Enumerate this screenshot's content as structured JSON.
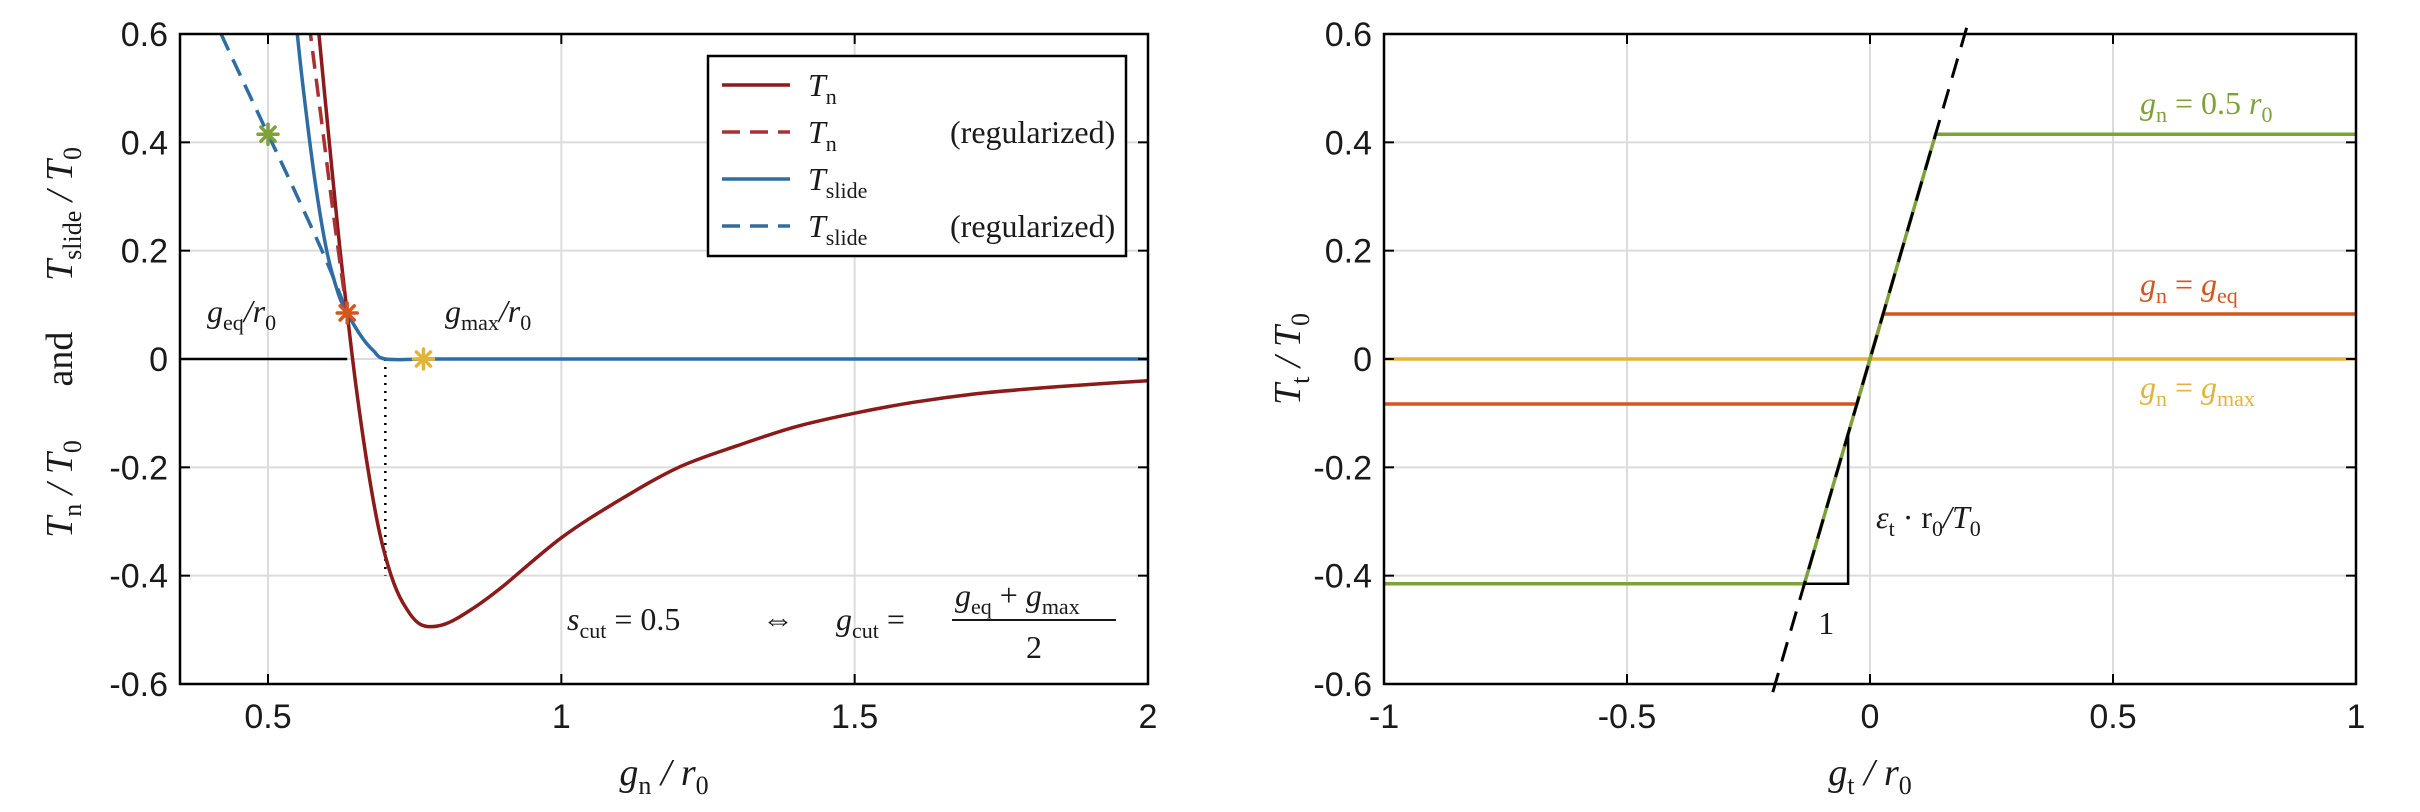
{
  "chart_data": [
    {
      "type": "line",
      "xlim": [
        0.35,
        2
      ],
      "ylim": [
        -0.6,
        0.6
      ],
      "xticks": [
        0.5,
        1,
        1.5,
        2
      ],
      "xtick_labels": [
        "0.5",
        "1",
        "1.5",
        "2"
      ],
      "yticks": [
        -0.6,
        -0.4,
        -0.2,
        0,
        0.2,
        0.4,
        0.6
      ],
      "ytick_labels": [
        "-0.6",
        "-0.4",
        "-0.2",
        "0",
        "0.2",
        "0.4",
        "0.6"
      ],
      "grid": true,
      "legend_position": "top-right",
      "xlabel": {
        "sym": "g",
        "sub": "n",
        "rest": " / r",
        "sub2": "0"
      },
      "ylabel": {
        "a": "T",
        "a_sub": "n",
        "b": " / T",
        "b_sub": "0",
        "and": "and",
        "c": "T",
        "c_sub": "slide",
        "d": " / T",
        "d_sub": "0"
      },
      "legend": [
        {
          "main": "T",
          "sub": "n",
          "suffix": "",
          "color": "#8b1a1a",
          "dashed": false
        },
        {
          "main": "T",
          "sub": "n",
          "suffix": "(regularized)",
          "color": "#a83232",
          "dashed": true
        },
        {
          "main": "T",
          "sub": "slide",
          "suffix": "",
          "color": "#2e6da4",
          "dashed": false
        },
        {
          "main": "T",
          "sub": "slide",
          "suffix": "(regularized)",
          "color": "#2e6da4",
          "dashed": true
        }
      ],
      "series": [
        {
          "name": "T_n",
          "color": "#8b1a1a",
          "dashed": false,
          "x": [
            0.585,
            0.6,
            0.62,
            0.635,
            0.65,
            0.67,
            0.69,
            0.71,
            0.73,
            0.76,
            0.8,
            0.85,
            0.9,
            1.0,
            1.1,
            1.2,
            1.3,
            1.4,
            1.5,
            1.6,
            1.7,
            1.8,
            1.9,
            2.0
          ],
          "y": [
            0.62,
            0.45,
            0.23,
            0.085,
            -0.05,
            -0.2,
            -0.32,
            -0.4,
            -0.45,
            -0.49,
            -0.49,
            -0.46,
            -0.42,
            -0.33,
            -0.26,
            -0.2,
            -0.16,
            -0.125,
            -0.1,
            -0.08,
            -0.065,
            -0.055,
            -0.047,
            -0.04
          ]
        },
        {
          "name": "T_n (regularized)",
          "color": "#a83232",
          "dashed": true,
          "x": [
            0.57,
            0.59,
            0.61,
            0.625,
            0.635
          ],
          "y": [
            0.62,
            0.45,
            0.28,
            0.16,
            0.085
          ]
        },
        {
          "name": "T_slide",
          "color": "#2e6da4",
          "dashed": false,
          "x": [
            0.548,
            0.56,
            0.58,
            0.6,
            0.62,
            0.635,
            0.66,
            0.68,
            0.7,
            0.765,
            1.0,
            1.5,
            2.0
          ],
          "y": [
            0.62,
            0.5,
            0.33,
            0.2,
            0.12,
            0.085,
            0.04,
            0.015,
            0.0,
            0.0,
            0.0,
            0.0,
            0.0
          ]
        },
        {
          "name": "T_slide (regularized)",
          "color": "#2e6da4",
          "dashed": true,
          "x": [
            0.42,
            0.45,
            0.5,
            0.55,
            0.6,
            0.635
          ],
          "y": [
            0.6,
            0.53,
            0.415,
            0.3,
            0.18,
            0.085
          ]
        }
      ],
      "zero_line": {
        "x": [
          0.35,
          0.635
        ],
        "y": [
          0,
          0
        ],
        "color": "#000000"
      },
      "cut_line": {
        "x": 0.7,
        "y": [
          0,
          -0.4
        ]
      },
      "markers": [
        {
          "name": "reg-point",
          "x": 0.5,
          "y": 0.415,
          "color": "#7ea23a"
        },
        {
          "name": "eq-point",
          "x": 0.635,
          "y": 0.085,
          "color": "#d4561f"
        },
        {
          "name": "max-point",
          "x": 0.765,
          "y": 0.0,
          "color": "#e3b43c"
        }
      ],
      "annotations": {
        "geq": {
          "sym": "g",
          "sub": "eq",
          "rest": "/r",
          "sub2": "0"
        },
        "gmax": {
          "sym": "g",
          "sub": "max",
          "rest": "/r",
          "sub2": "0"
        },
        "scut": {
          "sym": "s",
          "sub": "cut",
          "eq": " = 0.5",
          "iff": "⇔",
          "g": "g",
          "gsub": "cut",
          "eq2": " = ",
          "num_a": "g",
          "num_a_sub": "eq",
          "plus": " + ",
          "num_b": "g",
          "num_b_sub": "max",
          "den": "2"
        }
      }
    },
    {
      "type": "line",
      "xlim": [
        -1,
        1
      ],
      "ylim": [
        -0.6,
        0.6
      ],
      "xticks": [
        -1,
        -0.5,
        0,
        0.5,
        1
      ],
      "xtick_labels": [
        "-1",
        "-0.5",
        "0",
        "0.5",
        "1"
      ],
      "yticks": [
        -0.6,
        -0.4,
        -0.2,
        0,
        0.2,
        0.4,
        0.6
      ],
      "ytick_labels": [
        "-0.6",
        "-0.4",
        "-0.2",
        "0",
        "0.2",
        "0.4",
        "0.6"
      ],
      "grid": true,
      "xlabel": {
        "sym": "g",
        "sub": "t",
        "rest": " / r",
        "sub2": "0"
      },
      "ylabel": {
        "a": "T",
        "a_sub": "t",
        "b": " / T",
        "b_sub": "0"
      },
      "series": [
        {
          "name": "gn = 0.5 r0",
          "color": "#7ea23a",
          "x": [
            -1,
            -0.135,
            0.135,
            1
          ],
          "y": [
            -0.415,
            -0.415,
            0.415,
            0.415
          ]
        },
        {
          "name": "gn = geq",
          "color": "#d4561f",
          "x": [
            -1,
            -0.027,
            0.027,
            1
          ],
          "y": [
            -0.083,
            -0.083,
            0.083,
            0.083
          ]
        },
        {
          "name": "gn = gmax",
          "color": "#e3b43c",
          "x": [
            -1,
            1
          ],
          "y": [
            0,
            0
          ]
        }
      ],
      "dashed_line": {
        "x": [
          -0.2,
          0.2
        ],
        "y": [
          -0.615,
          0.615
        ],
        "color": "#000000"
      },
      "slope_triangle": {
        "x0": -0.135,
        "x1": -0.045,
        "y_bottom": -0.415,
        "y_top": -0.14,
        "run_label": "1"
      },
      "series_labels": [
        {
          "sym": "g",
          "sub": "n",
          "eq": " = 0.5 ",
          "r": "r",
          "rsub": "0",
          "color": "#7ea23a"
        },
        {
          "sym": "g",
          "sub": "n",
          "eq": " = ",
          "r": "g",
          "rsub": "eq",
          "color": "#d4561f"
        },
        {
          "sym": "g",
          "sub": "n",
          "eq": " = ",
          "r": "g",
          "rsub": "max",
          "color": "#e3b43c"
        }
      ],
      "slope_label": {
        "eps": "ε",
        "eps_sub": "t",
        "rest": " · r",
        "r_sub": "0",
        "over": "/T",
        "over_sub": "0"
      }
    }
  ]
}
